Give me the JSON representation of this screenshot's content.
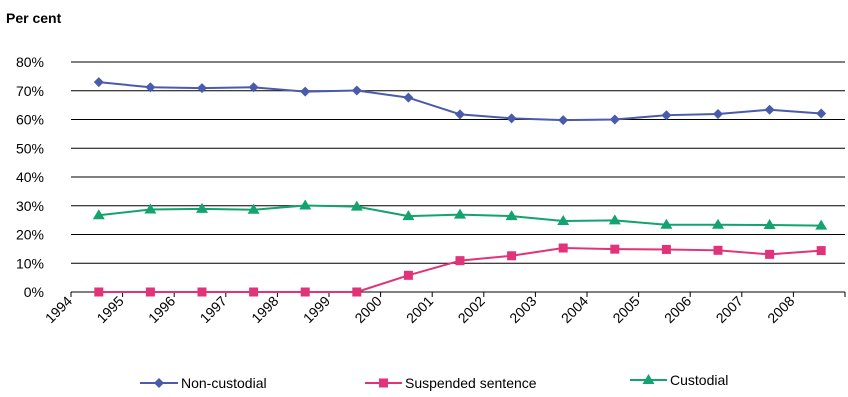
{
  "chart_data": {
    "type": "line",
    "ylabel": "Per cent",
    "xlabel": "",
    "ylim": [
      0,
      80
    ],
    "yticks": [
      "0%",
      "10%",
      "20%",
      "30%",
      "40%",
      "50%",
      "60%",
      "70%",
      "80%"
    ],
    "categories": [
      "1994",
      "1995",
      "1996",
      "1997",
      "1998",
      "1999",
      "2000",
      "2001",
      "2002",
      "2003",
      "2004",
      "2005",
      "2006",
      "2007",
      "2008"
    ],
    "grid": "horizontal",
    "legend_position": "bottom",
    "series": [
      {
        "name": "Non-custodial",
        "color": "#4a5bab",
        "marker": "diamond",
        "values": [
          73.0,
          71.2,
          70.9,
          71.2,
          69.7,
          70.1,
          67.6,
          61.8,
          60.4,
          59.8,
          60.0,
          61.5,
          61.9,
          63.4,
          62.1
        ]
      },
      {
        "name": "Suspended sentence",
        "color": "#e2327a",
        "marker": "square",
        "values": [
          0,
          0,
          0,
          0,
          0,
          0,
          5.8,
          10.9,
          12.6,
          15.3,
          14.9,
          14.8,
          14.5,
          13.1,
          14.4
        ]
      },
      {
        "name": "Custodial",
        "color": "#12a36e",
        "marker": "triangle",
        "values": [
          26.7,
          28.7,
          28.9,
          28.6,
          30.1,
          29.7,
          26.4,
          26.9,
          26.4,
          24.7,
          24.9,
          23.4,
          23.4,
          23.3,
          23.1
        ]
      }
    ]
  }
}
